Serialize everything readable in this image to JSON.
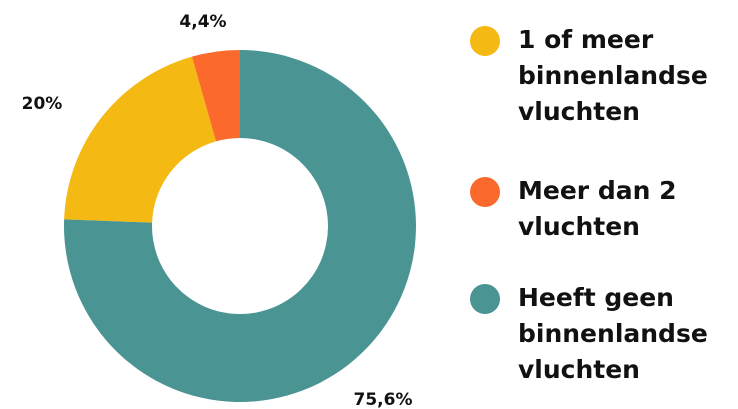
{
  "chart_data": {
    "type": "donut",
    "categories": [
      "1 of meer binnenlandse vluchten",
      "Meer dan 2 vluchten",
      "Heeft geen binnenlandse vluchten"
    ],
    "values": [
      20,
      4.4,
      75.6
    ],
    "value_labels": [
      "20%",
      "4,4%",
      "75,6%"
    ],
    "colors": [
      "#f5b914",
      "#fb6a2c",
      "#4a9593"
    ],
    "legend": "right"
  }
}
